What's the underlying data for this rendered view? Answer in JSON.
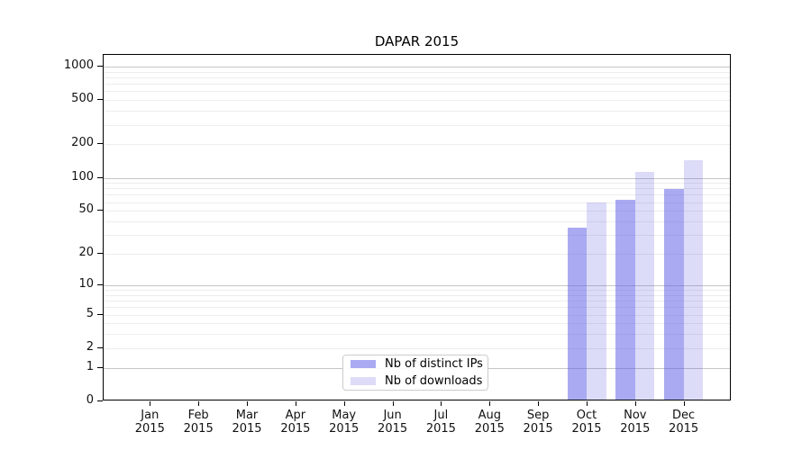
{
  "chart_data": {
    "type": "bar",
    "title": "DAPAR 2015",
    "categories": [
      "Jan",
      "Feb",
      "Mar",
      "Apr",
      "May",
      "Jun",
      "Jul",
      "Aug",
      "Sep",
      "Oct",
      "Nov",
      "Dec"
    ],
    "tick_year": "2015",
    "series": [
      {
        "name": "Nb of distinct IPs",
        "apparent_color": "#aaaaf2",
        "fill": "rgba(85,85,230,0.5)",
        "values": [
          0,
          0,
          0,
          0,
          0,
          0,
          0,
          0,
          0,
          35,
          63,
          79
        ]
      },
      {
        "name": "Nb of downloads",
        "apparent_color": "#dcdcf8",
        "fill": "rgba(80,80,220,0.2)",
        "values": [
          0,
          0,
          0,
          0,
          0,
          0,
          0,
          0,
          0,
          60,
          114,
          145
        ]
      }
    ],
    "xlabel": "",
    "ylabel": "",
    "yscale": "symlog: y position proportional to log10(value+1)",
    "yticks": [
      0,
      1,
      2,
      5,
      10,
      20,
      50,
      100,
      200,
      500,
      1000
    ],
    "major_grid_values": [
      1,
      10,
      100,
      1000
    ],
    "minor_grid_base": [
      2,
      3,
      4,
      5,
      6,
      7,
      8,
      9
    ],
    "ylim": [
      0,
      1270
    ],
    "grid": true,
    "legend_position": "inside, lower center-left"
  },
  "colors": {
    "background": "#ffffff",
    "spine": "#000000",
    "text": "#111111",
    "grid_major": "#c6c6c6",
    "grid_minor": "#ededed",
    "legend_border": "#cccccc"
  }
}
